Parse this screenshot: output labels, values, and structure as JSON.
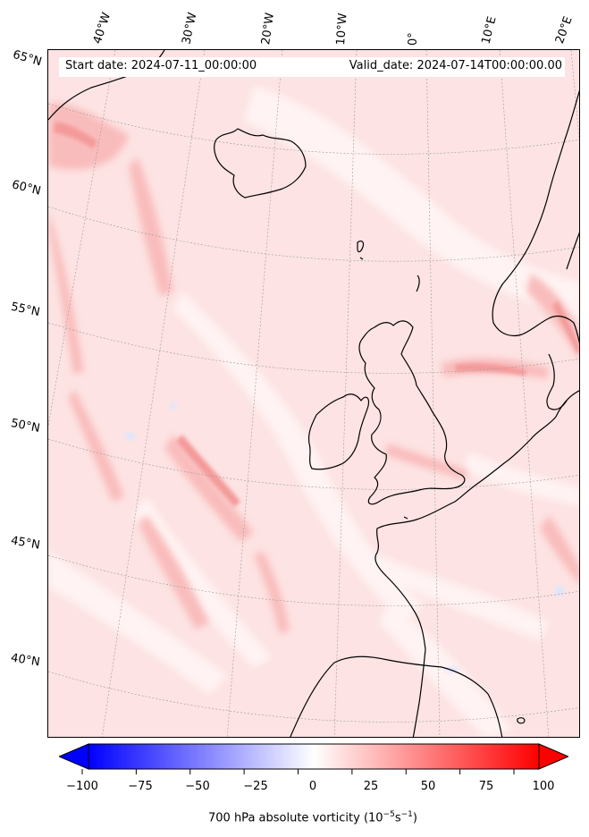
{
  "map": {
    "header": {
      "start_date": "Start date: 2024-07-11_00:00:00",
      "valid_date": "Valid_date: 2024-07-14T00:00:00.00"
    },
    "lon_labels": [
      "40°W",
      "30°W",
      "20°W",
      "10°W",
      "0°",
      "10°E",
      "20°E"
    ],
    "lat_labels": [
      "65°N",
      "60°N",
      "55°N",
      "50°N",
      "45°N",
      "40°N"
    ],
    "field": "700 hPa absolute vorticity",
    "colors": {
      "background_field": "#fde3e3",
      "enhanced_field": "#f9b8b8",
      "strong_field": "#f48a8a",
      "weak_field": "#fff4f4",
      "negative_field": "#dbe6ff",
      "coastline": "#000000",
      "gridline": "#9a9a9a"
    }
  },
  "colorbar": {
    "ticks": [
      "−100",
      "−75",
      "−50",
      "−25",
      "0",
      "25",
      "50",
      "75",
      "100"
    ],
    "min": -100,
    "max": 100,
    "colormap": "bwr",
    "extend": "both",
    "label_main": "700 hPa absolute vorticity (10",
    "label_exp1": "−5",
    "label_mid": "s",
    "label_exp2": "−1",
    "label_end": ")"
  }
}
